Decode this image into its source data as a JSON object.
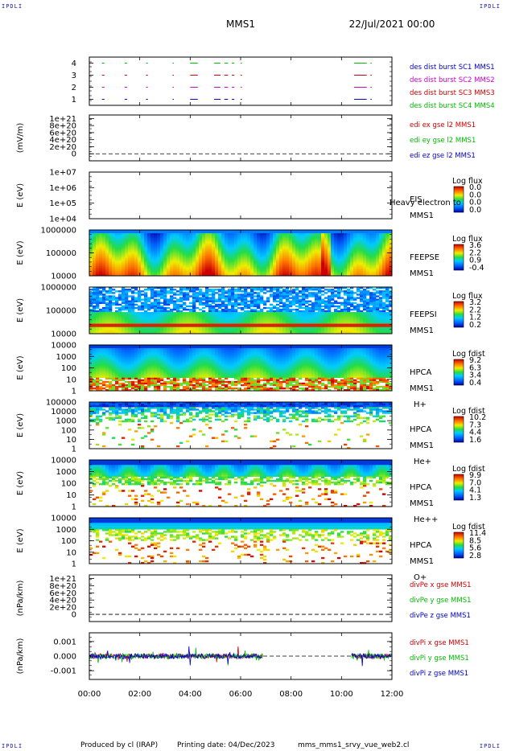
{
  "corner_label": "IPDLI",
  "header": {
    "spacecraft": "MMS1",
    "date": "22/Jul/2021 00:00"
  },
  "footer": {
    "produced_by": "Produced by cl (IRAP)",
    "printing_date": "Printing date: 04/Dec/2023",
    "file": "mms_mms1_srvy_vue_web2.cl"
  },
  "colors": {
    "mms1": "#0000cc",
    "mms2": "#cc00cc",
    "mms3": "#cc0000",
    "mms4": "#00bb00",
    "frame": "#000000"
  },
  "chart_data": [
    {
      "type": "line",
      "id": "burst",
      "ylim": [
        0.5,
        4.5
      ],
      "yticks": [
        "1",
        "2",
        "3",
        "4"
      ],
      "series": [
        {
          "name": "des dist burst SC1 MMS1",
          "color": "#0000cc",
          "level": 1
        },
        {
          "name": "des dist burst SC2 MMS2",
          "color": "#cc00cc",
          "level": 2
        },
        {
          "name": "des dist burst SC3 MMS3",
          "color": "#cc0000",
          "level": 3
        },
        {
          "name": "des dist burst SC4 MMS4",
          "color": "#00bb00",
          "level": 4
        }
      ],
      "intervals": [
        [
          0.5,
          0.6
        ],
        [
          1.4,
          1.5
        ],
        [
          2.25,
          2.32
        ],
        [
          3.3,
          3.35
        ],
        [
          4.0,
          4.3
        ],
        [
          4.95,
          5.2
        ],
        [
          5.35,
          5.5
        ],
        [
          5.65,
          5.75
        ],
        [
          6.0,
          6.05
        ],
        [
          10.5,
          11.0
        ],
        [
          11.15,
          11.2
        ]
      ]
    },
    {
      "type": "line",
      "id": "edi",
      "ylabel": "(mV/m)",
      "ylim": [
        -2e+20,
        1.1e+21
      ],
      "yticks": [
        "0",
        "2e+20",
        "4e+20",
        "6e+20",
        "8e+20",
        "1e+21"
      ],
      "series": [
        {
          "name": "edi ex gse l2 MMS1",
          "color": "#cc0000"
        },
        {
          "name": "edi ey gse l2 MMS1",
          "color": "#00bb00"
        },
        {
          "name": "edi ez gse l2 MMS1",
          "color": "#0000cc"
        }
      ]
    },
    {
      "type": "heatmap",
      "id": "eis",
      "ylabel": "E (eV)",
      "yscale": "log",
      "yticks": [
        "1e+04",
        "1e+05",
        "1e+06",
        "1e+07"
      ],
      "instrument": [
        "EIS",
        "MMS1"
      ],
      "overlay": "Heavy electron to",
      "colorbar": {
        "title": "Log flux",
        "labels": [
          "0.0",
          "0.0",
          "0.0",
          "0.0"
        ]
      }
    },
    {
      "type": "heatmap",
      "id": "feepse",
      "ylabel": "E (eV)",
      "yscale": "log",
      "yticks": [
        "10000",
        "100000",
        "1000000"
      ],
      "instrument": [
        "FEEPSE",
        "MMS1"
      ],
      "colorbar": {
        "title": "Log flux",
        "labels": [
          "3.6",
          "2.2",
          "0.9",
          "-0.4"
        ]
      }
    },
    {
      "type": "heatmap",
      "id": "feepsi",
      "ylabel": "E (eV)",
      "yscale": "log",
      "yticks": [
        "10000",
        "100000",
        "1000000"
      ],
      "instrument": [
        "FEEPSI",
        "MMS1"
      ],
      "colorbar": {
        "title": "Log flux",
        "labels": [
          "3.2",
          "2.2",
          "1.2",
          "0.2"
        ]
      }
    },
    {
      "type": "heatmap",
      "id": "hpca-h",
      "ylabel": "E (eV)",
      "yscale": "log",
      "yticks": [
        "1",
        "10",
        "100",
        "1000",
        "10000"
      ],
      "instrument": [
        "HPCA",
        "MMS1",
        "H+"
      ],
      "colorbar": {
        "title": "Log fdist",
        "labels": [
          "9.2",
          "6.3",
          "3.4",
          "0.4"
        ]
      }
    },
    {
      "type": "heatmap",
      "id": "hpca-he",
      "ylabel": "E (eV)",
      "yscale": "log",
      "yticks": [
        "1",
        "10",
        "100",
        "1000",
        "10000",
        "100000"
      ],
      "instrument": [
        "HPCA",
        "MMS1",
        "He+"
      ],
      "colorbar": {
        "title": "Log fdist",
        "labels": [
          "10.2",
          "7.3",
          "4.4",
          "1.6"
        ]
      }
    },
    {
      "type": "heatmap",
      "id": "hpca-hepp",
      "ylabel": "E (eV)",
      "yscale": "log",
      "yticks": [
        "1",
        "10",
        "100",
        "1000",
        "10000"
      ],
      "instrument": [
        "HPCA",
        "MMS1",
        "He++"
      ],
      "colorbar": {
        "title": "Log fdist",
        "labels": [
          "9.9",
          "7.0",
          "4.1",
          "1.3"
        ]
      }
    },
    {
      "type": "heatmap",
      "id": "hpca-o",
      "ylabel": "E (eV)",
      "yscale": "log",
      "yticks": [
        "1",
        "10",
        "100",
        "1000",
        "10000"
      ],
      "instrument": [
        "HPCA",
        "MMS1",
        "O+"
      ],
      "colorbar": {
        "title": "Log fdist",
        "labels": [
          "11.4",
          "8.5",
          "5.6",
          "2.8"
        ]
      }
    },
    {
      "type": "line",
      "id": "divpe",
      "ylabel": "(nPa/km)",
      "ylim": [
        -2e+20,
        1.1e+21
      ],
      "yticks": [
        "0",
        "2e+20",
        "4e+20",
        "6e+20",
        "8e+20",
        "1e+21"
      ],
      "series": [
        {
          "name": "divPe x gse MMS1",
          "color": "#cc0000"
        },
        {
          "name": "divPe y gse MMS1",
          "color": "#00bb00"
        },
        {
          "name": "divPe z gse MMS1",
          "color": "#0000cc"
        }
      ]
    },
    {
      "type": "line",
      "id": "divpi",
      "ylabel": "(nPa/km)",
      "ylim": [
        -0.0016,
        0.0016
      ],
      "yticks": [
        "-0.001",
        "0.000",
        "0.001"
      ],
      "series": [
        {
          "name": "divPi x gse MMS1",
          "color": "#cc0000"
        },
        {
          "name": "divPi y gse MMS1",
          "color": "#00bb00"
        },
        {
          "name": "divPi z gse MMS1",
          "color": "#0000cc"
        }
      ],
      "gap": [
        6.9,
        10.4
      ]
    }
  ],
  "time_axis": {
    "range_hours": [
      0,
      12
    ],
    "tick_labels": [
      "00:00",
      "02:00",
      "04:00",
      "06:00",
      "08:00",
      "10:00",
      "12:00"
    ]
  }
}
